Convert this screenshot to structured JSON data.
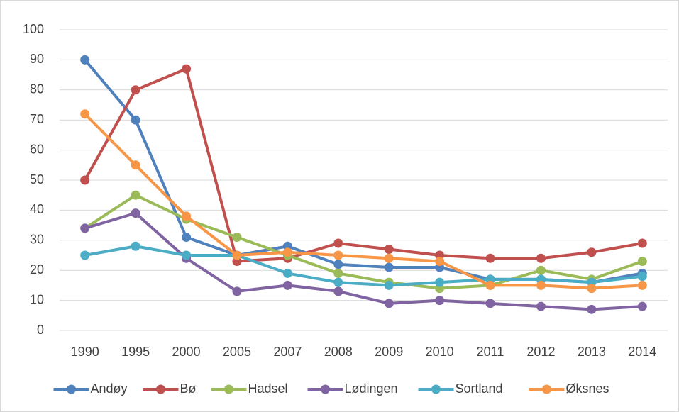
{
  "chart_data": {
    "type": "line",
    "categories": [
      "1990",
      "1995",
      "2000",
      "2005",
      "2007",
      "2008",
      "2009",
      "2010",
      "2011",
      "2012",
      "2013",
      "2014"
    ],
    "series": [
      {
        "name": "Andøy",
        "color": "#4f81bd",
        "values": [
          90,
          70,
          31,
          25,
          28,
          22,
          21,
          21,
          17,
          17,
          16,
          19
        ]
      },
      {
        "name": "Bø",
        "color": "#c0504d",
        "values": [
          50,
          80,
          87,
          23,
          24,
          29,
          27,
          25,
          24,
          24,
          26,
          29
        ]
      },
      {
        "name": "Hadsel",
        "color": "#9bbb59",
        "values": [
          34,
          45,
          37,
          31,
          25,
          19,
          16,
          14,
          15,
          20,
          17,
          23
        ]
      },
      {
        "name": "Lødingen",
        "color": "#8064a2",
        "values": [
          34,
          39,
          24,
          13,
          15,
          13,
          9,
          10,
          9,
          8,
          7,
          8
        ]
      },
      {
        "name": "Sortland",
        "color": "#4bacc6",
        "values": [
          25,
          28,
          25,
          25,
          19,
          16,
          15,
          16,
          17,
          17,
          16,
          18
        ]
      },
      {
        "name": "Øksnes",
        "color": "#f79646",
        "values": [
          72,
          55,
          38,
          25,
          26,
          25,
          24,
          23,
          15,
          15,
          14,
          15
        ]
      }
    ],
    "ylim": [
      0,
      100
    ],
    "yticks": [
      0,
      10,
      20,
      30,
      40,
      50,
      60,
      70,
      80,
      90,
      100
    ],
    "grid": true,
    "legend": "bottom"
  }
}
